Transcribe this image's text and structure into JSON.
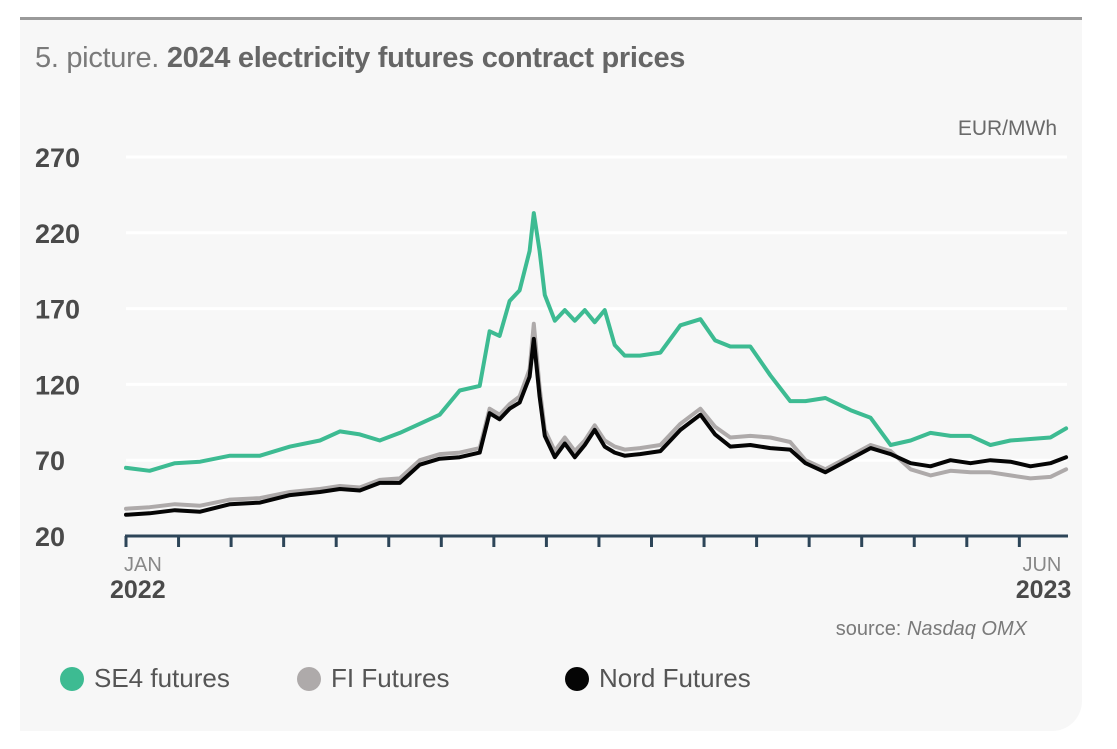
{
  "header": {
    "title_prefix": "5. picture.",
    "title_main": "2024 electricity futures contract prices"
  },
  "unit_label": "EUR/MWh",
  "source": {
    "label": "source:",
    "name": "Nasdaq OMX"
  },
  "legend": [
    {
      "label": "SE4 futures",
      "color": "#3dbb92"
    },
    {
      "label": "FI Futures",
      "color": "#aeaaaa"
    },
    {
      "label": "Nord Futures",
      "color": "#050505"
    }
  ],
  "chart_data": {
    "type": "line",
    "title": "2024 electricity futures contract prices",
    "xlabel": "",
    "ylabel": "EUR/MWh",
    "ylim": [
      20,
      270
    ],
    "yticks": [
      20,
      70,
      120,
      170,
      220,
      270
    ],
    "grid": true,
    "x_unit": "months since Jan 2022",
    "xlim": [
      0,
      17.9
    ],
    "x_tick_count": 18,
    "x_tick_labels": [
      {
        "month": "JAN",
        "year": "2022",
        "x": 0
      },
      {
        "month": "JUN",
        "year": "2023",
        "x": 17
      }
    ],
    "legend_position": "bottom",
    "source": "source: Nasdaq OMX",
    "series": [
      {
        "name": "SE4 futures",
        "color": "#3dbb92",
        "x": [
          0,
          0.45,
          0.93,
          1.41,
          1.98,
          2.55,
          3.12,
          3.69,
          4.07,
          4.45,
          4.83,
          5.21,
          5.59,
          5.97,
          6.35,
          6.73,
          6.92,
          7.11,
          7.3,
          7.49,
          7.68,
          7.76,
          7.87,
          7.97,
          8.16,
          8.35,
          8.54,
          8.73,
          8.92,
          9.11,
          9.3,
          9.49,
          9.78,
          10.17,
          10.55,
          10.93,
          11.21,
          11.5,
          11.88,
          12.26,
          12.64,
          12.93,
          13.31,
          13.79,
          14.17,
          14.55,
          14.93,
          15.31,
          15.69,
          16.07,
          16.45,
          16.83,
          17.21,
          17.59,
          17.89
        ],
        "values": [
          65,
          63,
          68,
          69,
          73,
          73,
          79,
          83,
          89,
          87,
          83,
          88,
          94,
          100,
          116,
          119,
          155,
          152,
          175,
          182,
          208,
          233,
          208,
          179,
          162,
          169,
          162,
          169,
          161,
          169,
          146,
          139,
          139,
          141,
          159,
          163,
          149,
          145,
          145,
          126,
          109,
          109,
          111,
          103,
          98,
          80,
          83,
          88,
          86,
          86,
          80,
          83,
          84,
          85,
          91
        ]
      },
      {
        "name": "FI Futures",
        "color": "#aeaaaa",
        "x": [
          0,
          0.45,
          0.93,
          1.41,
          1.98,
          2.55,
          3.12,
          3.69,
          4.07,
          4.45,
          4.83,
          5.21,
          5.59,
          5.97,
          6.35,
          6.73,
          6.92,
          7.11,
          7.3,
          7.49,
          7.68,
          7.76,
          7.87,
          7.97,
          8.16,
          8.35,
          8.54,
          8.73,
          8.92,
          9.11,
          9.3,
          9.49,
          9.78,
          10.17,
          10.55,
          10.93,
          11.21,
          11.5,
          11.88,
          12.26,
          12.64,
          12.93,
          13.31,
          13.79,
          14.17,
          14.55,
          14.93,
          15.31,
          15.69,
          16.07,
          16.45,
          16.83,
          17.21,
          17.59,
          17.89
        ],
        "values": [
          38,
          39,
          41,
          40,
          44,
          45,
          49,
          51,
          53,
          52,
          57,
          58,
          70,
          74,
          75,
          78,
          104,
          100,
          107,
          112,
          130,
          160,
          118,
          90,
          76,
          85,
          76,
          83,
          93,
          83,
          79,
          77,
          78,
          80,
          94,
          104,
          92,
          85,
          86,
          85,
          82,
          70,
          64,
          73,
          80,
          76,
          64,
          60,
          63,
          62,
          62,
          60,
          58,
          59,
          64
        ]
      },
      {
        "name": "Nord Futures",
        "color": "#050505",
        "x": [
          0,
          0.45,
          0.93,
          1.41,
          1.98,
          2.55,
          3.12,
          3.69,
          4.07,
          4.45,
          4.83,
          5.21,
          5.59,
          5.97,
          6.35,
          6.73,
          6.92,
          7.11,
          7.3,
          7.49,
          7.68,
          7.76,
          7.87,
          7.97,
          8.16,
          8.35,
          8.54,
          8.73,
          8.92,
          9.11,
          9.3,
          9.49,
          9.78,
          10.17,
          10.55,
          10.93,
          11.21,
          11.5,
          11.88,
          12.26,
          12.64,
          12.93,
          13.31,
          13.79,
          14.17,
          14.55,
          14.93,
          15.31,
          15.69,
          16.07,
          16.45,
          16.83,
          17.21,
          17.59,
          17.89
        ],
        "values": [
          34,
          35,
          37,
          36,
          41,
          42,
          47,
          49,
          51,
          50,
          55,
          55,
          67,
          71,
          72,
          75,
          101,
          97,
          104,
          108,
          125,
          150,
          112,
          86,
          72,
          81,
          72,
          80,
          90,
          79,
          75,
          73,
          74,
          76,
          90,
          100,
          87,
          79,
          80,
          78,
          77,
          68,
          62,
          71,
          78,
          74,
          68,
          66,
          70,
          68,
          70,
          69,
          66,
          68,
          72
        ]
      }
    ]
  }
}
